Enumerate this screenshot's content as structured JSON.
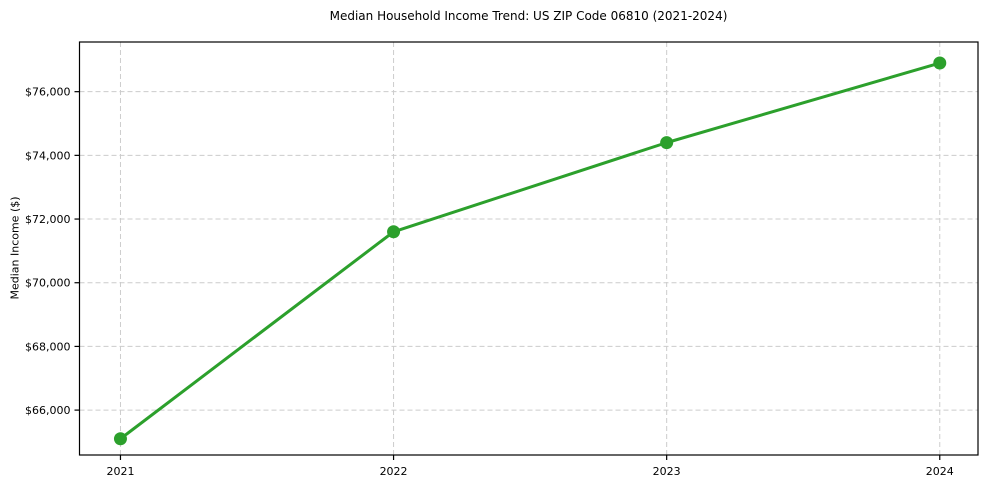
{
  "chart_data": {
    "type": "line",
    "title": "Median Household Income Trend: US ZIP Code 06810 (2021-2024)",
    "xlabel": "",
    "ylabel": "Median Income ($)",
    "series_name": "Median Household Income",
    "x": [
      2021,
      2022,
      2023,
      2024
    ],
    "x_tick_labels": [
      "2021",
      "2022",
      "2023",
      "2024"
    ],
    "values": [
      65100,
      71600,
      74400,
      76900
    ],
    "y_ticks": [
      66000,
      68000,
      70000,
      72000,
      74000,
      76000
    ],
    "y_tick_labels": [
      "$66,000",
      "$68,000",
      "$70,000",
      "$72,000",
      "$74,000",
      "$76,000"
    ],
    "xlim": [
      2020.85,
      2024.14
    ],
    "ylim": [
      64590,
      77560
    ],
    "grid": true,
    "grid_style": "dashed",
    "legend_position": "none",
    "colors": {
      "line": "#2ca02c",
      "marker": "#2ca02c",
      "grid": "#cccccc",
      "axis": "#000000",
      "text": "#000000",
      "background": "#ffffff"
    },
    "line_width": 3,
    "marker_radius": 6.5
  }
}
